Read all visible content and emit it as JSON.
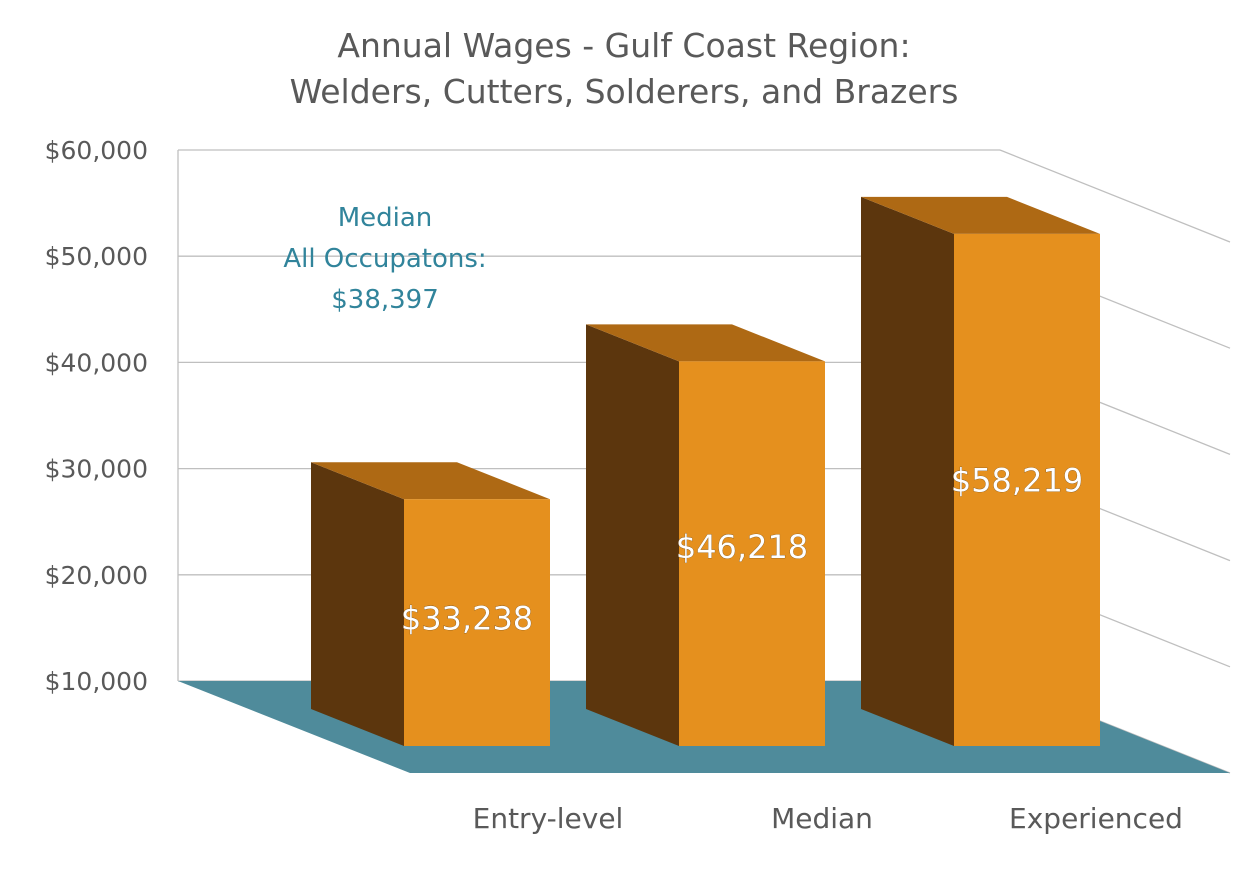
{
  "chart_data": {
    "type": "bar",
    "title": "Annual Wages - Gulf Coast Region:",
    "subtitle": "Welders, Cutters, Solderers, and Brazers",
    "categories": [
      "Entry-level",
      "Median",
      "Experienced"
    ],
    "values": [
      33238,
      46218,
      58219
    ],
    "data_labels": [
      "$33,238",
      "$46,218",
      "$58,219"
    ],
    "yticks": [
      "$10,000",
      "$20,000",
      "$30,000",
      "$40,000",
      "$50,000",
      "$60,000"
    ],
    "ylim": [
      10000,
      60000
    ],
    "grid": true,
    "annotation": {
      "line1": "Median",
      "line2": "All Occupatons:",
      "line3": "$38,397"
    },
    "colors": {
      "bar_front": "#e5901e",
      "bar_side": "#5c360d",
      "bar_top": "#ae6914",
      "floor": "#4f8b9b",
      "grid": "#bfbfbf",
      "annotation": "#31849b"
    }
  }
}
